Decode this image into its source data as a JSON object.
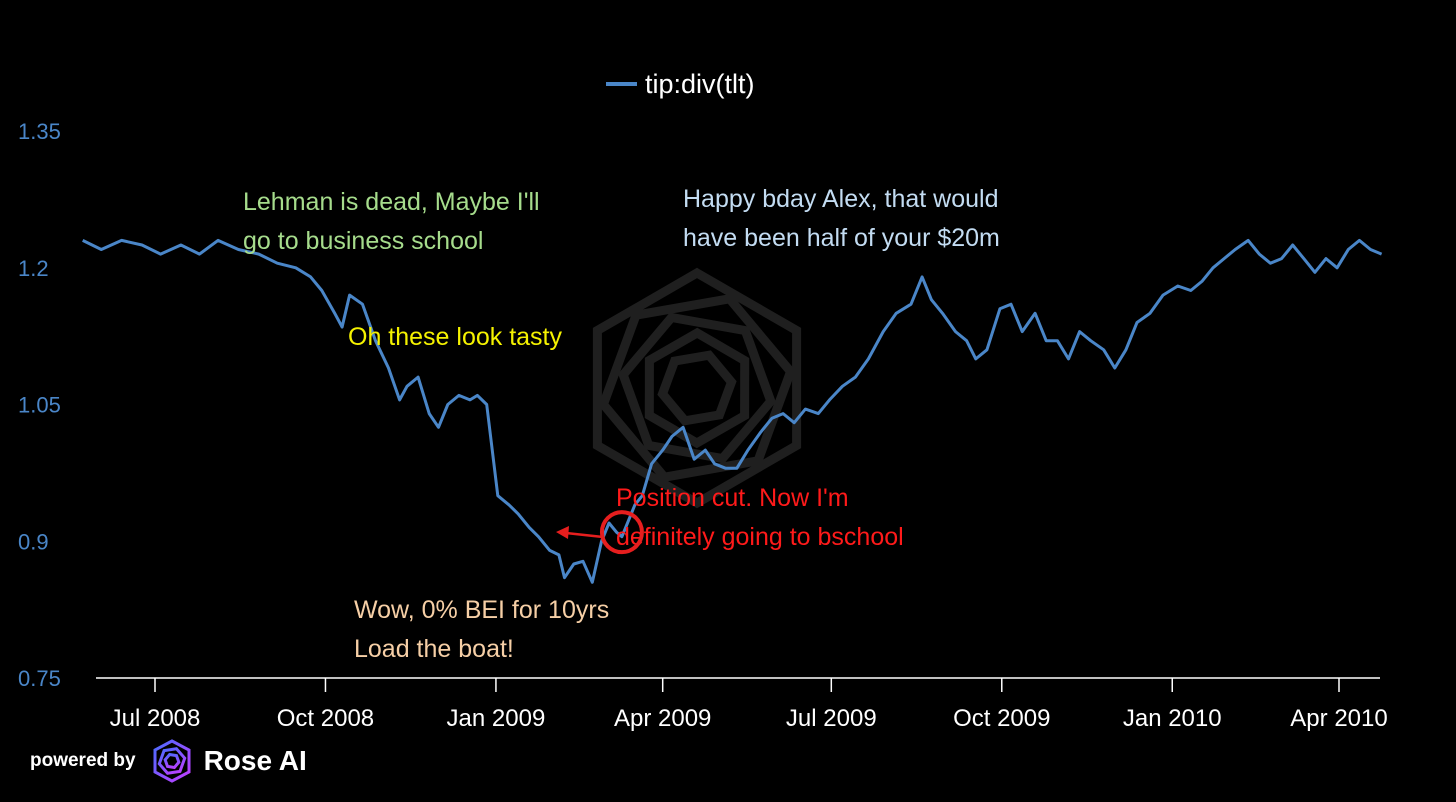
{
  "chart_data": {
    "type": "line",
    "title": "",
    "xlabel": "",
    "ylabel": "",
    "ylim": [
      0.75,
      1.35
    ],
    "yticks": [
      "1.35",
      "1.2",
      "1.05",
      "0.9",
      "0.75"
    ],
    "xticks": [
      "Jul 2008",
      "Oct 2008",
      "Jan 2009",
      "Apr 2009",
      "Jul 2009",
      "Oct 2009",
      "Jan 2010",
      "Apr 2010"
    ],
    "grid": false,
    "legend_position": "top-center",
    "series": [
      {
        "name": "tip:div(tlt)",
        "color": "#4a86c8",
        "points": [
          [
            "2008-05-23",
            1.23
          ],
          [
            "2008-06-02",
            1.22
          ],
          [
            "2008-06-13",
            1.23
          ],
          [
            "2008-06-24",
            1.225
          ],
          [
            "2008-07-04",
            1.215
          ],
          [
            "2008-07-15",
            1.225
          ],
          [
            "2008-07-25",
            1.215
          ],
          [
            "2008-08-04",
            1.23
          ],
          [
            "2008-08-15",
            1.22
          ],
          [
            "2008-08-26",
            1.215
          ],
          [
            "2008-09-05",
            1.205
          ],
          [
            "2008-09-15",
            1.2
          ],
          [
            "2008-09-23",
            1.19
          ],
          [
            "2008-09-29",
            1.175
          ],
          [
            "2008-10-06",
            1.15
          ],
          [
            "2008-10-10",
            1.135
          ],
          [
            "2008-10-14",
            1.17
          ],
          [
            "2008-10-21",
            1.16
          ],
          [
            "2008-10-28",
            1.12
          ],
          [
            "2008-11-04",
            1.09
          ],
          [
            "2008-11-10",
            1.055
          ],
          [
            "2008-11-14",
            1.07
          ],
          [
            "2008-11-20",
            1.08
          ],
          [
            "2008-11-26",
            1.04
          ],
          [
            "2008-12-01",
            1.025
          ],
          [
            "2008-12-06",
            1.05
          ],
          [
            "2008-12-12",
            1.06
          ],
          [
            "2008-12-18",
            1.055
          ],
          [
            "2008-12-22",
            1.06
          ],
          [
            "2008-12-27",
            1.05
          ],
          [
            "2009-01-02",
            0.95
          ],
          [
            "2009-01-08",
            0.94
          ],
          [
            "2009-01-13",
            0.93
          ],
          [
            "2009-01-19",
            0.915
          ],
          [
            "2009-01-24",
            0.905
          ],
          [
            "2009-01-30",
            0.89
          ],
          [
            "2009-02-04",
            0.885
          ],
          [
            "2009-02-07",
            0.86
          ],
          [
            "2009-02-12",
            0.875
          ],
          [
            "2009-02-17",
            0.878
          ],
          [
            "2009-02-22",
            0.855
          ],
          [
            "2009-02-27",
            0.9
          ],
          [
            "2009-03-03",
            0.92
          ],
          [
            "2009-03-07",
            0.91
          ],
          [
            "2009-03-10",
            0.905
          ],
          [
            "2009-03-13",
            0.92
          ],
          [
            "2009-03-17",
            0.94
          ],
          [
            "2009-03-21",
            0.95
          ],
          [
            "2009-03-26",
            0.985
          ],
          [
            "2009-04-01",
            1.0
          ],
          [
            "2009-04-06",
            1.015
          ],
          [
            "2009-04-12",
            1.025
          ],
          [
            "2009-04-18",
            0.99
          ],
          [
            "2009-04-24",
            1.0
          ],
          [
            "2009-04-29",
            0.985
          ],
          [
            "2009-05-05",
            0.98
          ],
          [
            "2009-05-11",
            0.98
          ],
          [
            "2009-05-17",
            1.0
          ],
          [
            "2009-05-24",
            1.02
          ],
          [
            "2009-05-30",
            1.035
          ],
          [
            "2009-06-05",
            1.04
          ],
          [
            "2009-06-11",
            1.03
          ],
          [
            "2009-06-17",
            1.045
          ],
          [
            "2009-06-24",
            1.04
          ],
          [
            "2009-06-30",
            1.055
          ],
          [
            "2009-07-07",
            1.07
          ],
          [
            "2009-07-14",
            1.08
          ],
          [
            "2009-07-21",
            1.1
          ],
          [
            "2009-07-29",
            1.13
          ],
          [
            "2009-08-05",
            1.15
          ],
          [
            "2009-08-13",
            1.16
          ],
          [
            "2009-08-19",
            1.19
          ],
          [
            "2009-08-24",
            1.165
          ],
          [
            "2009-08-30",
            1.15
          ],
          [
            "2009-09-06",
            1.13
          ],
          [
            "2009-09-12",
            1.12
          ],
          [
            "2009-09-17",
            1.1
          ],
          [
            "2009-09-23",
            1.11
          ],
          [
            "2009-09-30",
            1.155
          ],
          [
            "2009-10-06",
            1.16
          ],
          [
            "2009-10-12",
            1.13
          ],
          [
            "2009-10-19",
            1.15
          ],
          [
            "2009-10-25",
            1.12
          ],
          [
            "2009-10-31",
            1.12
          ],
          [
            "2009-11-06",
            1.1
          ],
          [
            "2009-11-12",
            1.13
          ],
          [
            "2009-11-18",
            1.12
          ],
          [
            "2009-11-25",
            1.11
          ],
          [
            "2009-12-01",
            1.09
          ],
          [
            "2009-12-07",
            1.11
          ],
          [
            "2009-12-13",
            1.14
          ],
          [
            "2009-12-20",
            1.15
          ],
          [
            "2009-12-27",
            1.17
          ],
          [
            "2010-01-04",
            1.18
          ],
          [
            "2010-01-11",
            1.175
          ],
          [
            "2010-01-17",
            1.185
          ],
          [
            "2010-01-23",
            1.2
          ],
          [
            "2010-01-29",
            1.21
          ],
          [
            "2010-02-04",
            1.22
          ],
          [
            "2010-02-11",
            1.23
          ],
          [
            "2010-02-17",
            1.215
          ],
          [
            "2010-02-23",
            1.205
          ],
          [
            "2010-03-01",
            1.21
          ],
          [
            "2010-03-07",
            1.225
          ],
          [
            "2010-03-13",
            1.21
          ],
          [
            "2010-03-19",
            1.195
          ],
          [
            "2010-03-25",
            1.21
          ],
          [
            "2010-03-31",
            1.2
          ],
          [
            "2010-04-06",
            1.22
          ],
          [
            "2010-04-12",
            1.23
          ],
          [
            "2010-04-18",
            1.22
          ],
          [
            "2010-04-24",
            1.215
          ]
        ]
      }
    ],
    "annotations": [
      {
        "lines": [
          "Lehman is dead, Maybe I'll",
          "go to business school"
        ],
        "color": "#a6dc8c"
      },
      {
        "lines": [
          "Oh these look tasty"
        ],
        "color": "#f5f200"
      },
      {
        "lines": [
          "Happy bday Alex, that would",
          "have been half of your $20m"
        ],
        "color": "#c3dcf2"
      },
      {
        "lines": [
          "Position cut.  Now I'm",
          "definitely going to bschool"
        ],
        "color": "#ff1a1a"
      },
      {
        "lines": [
          "Wow, 0% BEI for 10yrs",
          "Load the boat!"
        ],
        "color": "#f6cfa6"
      }
    ],
    "highlight": {
      "date": "2009-03-10",
      "value": 0.91,
      "color": "#e61e1e"
    }
  },
  "footer": {
    "powered_label": "powered by",
    "brand": "Rose AI",
    "logo_icon": "rose-ai-logo-icon"
  }
}
